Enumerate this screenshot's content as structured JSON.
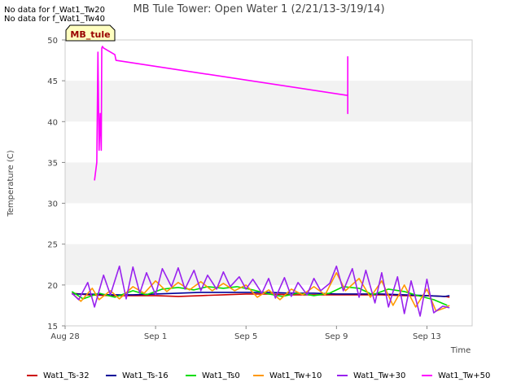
{
  "no_data_messages": [
    "No data for f_Wat1_Tw20",
    "No data for f_Wat1_Tw40"
  ],
  "chart_data": {
    "type": "line",
    "title": "MB Tule Tower: Open Water 1 (2/21/13-3/19/14)",
    "xlabel": "Time",
    "ylabel": "Temperature (C)",
    "site_label": "MB_tule",
    "xlim": [
      0,
      18
    ],
    "ylim": [
      15,
      50
    ],
    "x_ticks": [
      {
        "x": 0,
        "label": "Aug 28"
      },
      {
        "x": 4,
        "label": "Sep 1"
      },
      {
        "x": 8,
        "label": "Sep 5"
      },
      {
        "x": 12,
        "label": "Sep 9"
      },
      {
        "x": 16,
        "label": "Sep 13"
      }
    ],
    "y_ticks": [
      15,
      20,
      25,
      30,
      35,
      40,
      45,
      50
    ],
    "grid_bands": [
      [
        20,
        25
      ],
      [
        30,
        35
      ],
      [
        40,
        45
      ]
    ],
    "series": [
      {
        "name": "Wat1_Ts-32",
        "color": "#cc0000",
        "x": [
          0.3,
          1,
          2,
          3,
          4,
          5,
          6,
          7,
          8,
          9,
          10,
          11,
          12,
          13,
          14,
          15,
          16,
          16.8,
          17
        ],
        "y": [
          19.0,
          18.8,
          18.7,
          18.7,
          18.7,
          18.6,
          18.7,
          18.8,
          18.9,
          18.9,
          18.8,
          18.8,
          18.8,
          18.8,
          18.8,
          18.7,
          18.7,
          18.6,
          18.5
        ]
      },
      {
        "name": "Wat1_Ts-16",
        "color": "#000099",
        "x": [
          0.3,
          1,
          2,
          3,
          4,
          5,
          6,
          7,
          8,
          9,
          10,
          11,
          12,
          13,
          14,
          15,
          16,
          16.8,
          17
        ],
        "y": [
          18.9,
          18.9,
          18.8,
          18.8,
          18.9,
          19.0,
          19.1,
          19.1,
          19.1,
          19.1,
          19.0,
          19.0,
          18.9,
          18.9,
          18.9,
          18.8,
          18.7,
          18.6,
          18.7
        ]
      },
      {
        "name": "Wat1_Ts0",
        "color": "#00dd00",
        "x": [
          0.3,
          0.8,
          1.5,
          2.2,
          3.0,
          3.6,
          4.3,
          5.0,
          5.7,
          6.3,
          7.0,
          7.6,
          8.3,
          9.0,
          9.6,
          10.3,
          11.0,
          11.7,
          12.3,
          13.0,
          13.6,
          14.3,
          15.0,
          15.6,
          16.3,
          16.9
        ],
        "y": [
          19.2,
          18.3,
          19.0,
          18.5,
          19.3,
          18.8,
          19.5,
          19.7,
          19.4,
          19.8,
          19.6,
          19.8,
          19.4,
          18.9,
          18.6,
          19.0,
          18.7,
          19.0,
          19.8,
          19.6,
          18.8,
          19.5,
          19.2,
          18.7,
          18.2,
          17.5
        ]
      },
      {
        "name": "Wat1_Tw+10",
        "color": "#ff9900",
        "x": [
          0.3,
          0.7,
          1.2,
          1.5,
          2.0,
          2.4,
          3.0,
          3.5,
          4.0,
          4.5,
          5.0,
          5.5,
          6.0,
          6.5,
          7.0,
          7.5,
          8.0,
          8.5,
          9.0,
          9.5,
          10.0,
          10.5,
          11.0,
          11.5,
          12.0,
          12.4,
          13.0,
          13.5,
          14.0,
          14.5,
          15.0,
          15.5,
          16.0,
          16.4,
          16.8,
          17.0
        ],
        "y": [
          19.0,
          18.0,
          19.6,
          18.2,
          19.3,
          18.3,
          19.8,
          19.0,
          20.5,
          19.2,
          20.3,
          19.4,
          20.4,
          19.3,
          20.2,
          19.3,
          20.0,
          18.5,
          19.4,
          18.2,
          19.5,
          18.8,
          19.8,
          18.8,
          21.5,
          19.3,
          20.8,
          18.5,
          20.5,
          17.5,
          20.0,
          17.3,
          19.5,
          16.8,
          17.2,
          17.5
        ]
      },
      {
        "name": "Wat1_Tw+30",
        "color": "#9922ee",
        "x": [
          0.3,
          0.6,
          1.0,
          1.3,
          1.7,
          2.0,
          2.4,
          2.7,
          3.0,
          3.3,
          3.6,
          4.0,
          4.3,
          4.7,
          5.0,
          5.3,
          5.7,
          6.0,
          6.3,
          6.7,
          7.0,
          7.3,
          7.7,
          8.0,
          8.3,
          8.7,
          9.0,
          9.3,
          9.7,
          10.0,
          10.3,
          10.7,
          11.0,
          11.3,
          11.7,
          12.0,
          12.3,
          12.7,
          13.0,
          13.3,
          13.7,
          14.0,
          14.3,
          14.7,
          15.0,
          15.3,
          15.7,
          16.0,
          16.3,
          16.7,
          17.0
        ],
        "y": [
          19.0,
          18.2,
          20.3,
          17.3,
          21.2,
          18.8,
          22.3,
          18.3,
          22.2,
          19.0,
          21.5,
          18.8,
          22.0,
          19.8,
          22.1,
          19.5,
          21.8,
          19.3,
          21.2,
          19.5,
          21.6,
          19.8,
          21.0,
          19.5,
          20.7,
          19.0,
          20.8,
          18.4,
          20.9,
          18.6,
          20.3,
          18.8,
          20.8,
          19.3,
          20.2,
          22.3,
          19.3,
          22.0,
          18.5,
          21.8,
          17.8,
          21.5,
          17.3,
          21.0,
          16.5,
          20.5,
          16.2,
          20.7,
          16.6,
          17.4,
          17.2
        ]
      },
      {
        "name": "Wat1_Tw+50",
        "color": "#ff00ff",
        "x": [
          1.3,
          1.4,
          1.45,
          1.5,
          1.55,
          1.6,
          1.62,
          1.65,
          1.7,
          2.2,
          2.25,
          12.5,
          12.5,
          12.5
        ],
        "y": [
          32.8,
          35.0,
          48.5,
          36.5,
          41.0,
          36.5,
          49.0,
          49.2,
          49.0,
          48.2,
          47.5,
          43.2,
          41.0,
          48.0
        ]
      }
    ]
  }
}
